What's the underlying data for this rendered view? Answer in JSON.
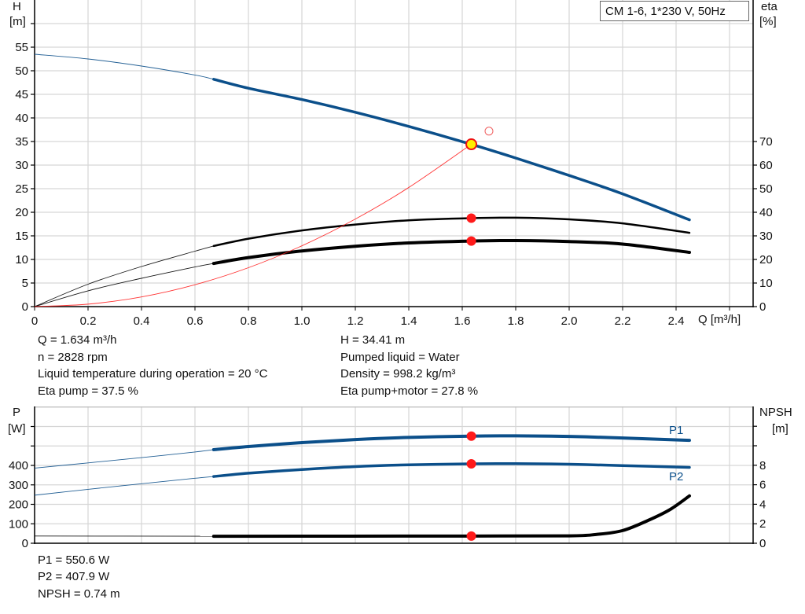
{
  "chart_data": [
    {
      "type": "line",
      "title": "CM 1-6, 1*230 V, 50Hz",
      "xlabel": "Q [m³/h]",
      "ylabel_left": {
        "name": "H",
        "unit": "[m]"
      },
      "ylabel_right": {
        "name": "eta",
        "unit": "[%]"
      },
      "xlim": [
        0,
        2.69
      ],
      "ylim_left": [
        0,
        65
      ],
      "ylim_right": [
        0,
        130
      ],
      "x_ticks": [
        "0",
        "0.2",
        "0.4",
        "0.6",
        "0.8",
        "1.0",
        "1.2",
        "1.4",
        "1.6",
        "1.8",
        "2.0",
        "2.2",
        "2.4"
      ],
      "y_left_ticks": [
        "0",
        "5",
        "10",
        "15",
        "20",
        "25",
        "30",
        "35",
        "40",
        "45",
        "50",
        "55"
      ],
      "y_right_ticks": [
        "0",
        "10",
        "20",
        "30",
        "40",
        "50",
        "60",
        "70"
      ],
      "grid": true,
      "series": [
        {
          "axis": "left",
          "color": "#0b4f8a",
          "thick_from_q": 0.67,
          "x": [
            0,
            0.2,
            0.4,
            0.6,
            0.67,
            0.8,
            1.0,
            1.2,
            1.4,
            1.634,
            1.8,
            2.0,
            2.2,
            2.45
          ],
          "y": [
            53.5,
            52.5,
            51.0,
            49.1,
            48.2,
            46.3,
            43.9,
            41.2,
            38.2,
            34.41,
            31.5,
            27.8,
            23.9,
            18.4
          ]
        },
        {
          "axis": "right",
          "color": "#000000",
          "thick_from_q": 0.67,
          "x": [
            0,
            0.2,
            0.4,
            0.6,
            0.67,
            0.8,
            1.0,
            1.2,
            1.4,
            1.634,
            1.8,
            2.0,
            2.2,
            2.45
          ],
          "y": [
            0,
            9.5,
            17.0,
            23.5,
            25.7,
            28.8,
            32.3,
            34.8,
            36.6,
            37.5,
            37.7,
            37.0,
            35.3,
            31.3
          ]
        },
        {
          "axis": "right",
          "color": "#000000",
          "thick_from_q": 0.67,
          "heavy": true,
          "x": [
            0,
            0.2,
            0.4,
            0.6,
            0.67,
            0.8,
            1.0,
            1.2,
            1.4,
            1.634,
            1.8,
            2.0,
            2.2,
            2.45
          ],
          "y": [
            0,
            6.7,
            12.0,
            16.8,
            18.3,
            20.8,
            23.6,
            25.6,
            27.0,
            27.8,
            28.0,
            27.6,
            26.5,
            23.0
          ]
        },
        {
          "axis": "left",
          "color": "#ff2020",
          "thick_from_q": null,
          "x": [
            0,
            0.2,
            0.4,
            0.6,
            0.8,
            1.0,
            1.2,
            1.4,
            1.634
          ],
          "y": [
            0,
            0.52,
            2.06,
            4.64,
            8.25,
            12.89,
            18.56,
            25.26,
            34.41
          ]
        }
      ],
      "duty_point": {
        "q": 1.634,
        "h": 34.41,
        "eta_pump": 37.5,
        "eta_total": 27.8
      },
      "requested_point": {
        "q": 1.7,
        "h": 37.2
      }
    },
    {
      "type": "line",
      "ylabel_left": {
        "name": "P",
        "unit": "[W]"
      },
      "ylabel_right": {
        "name": "NPSH",
        "unit": "[m]"
      },
      "xlim": [
        0,
        2.69
      ],
      "ylim_left": [
        0,
        700
      ],
      "ylim_right": [
        0,
        14
      ],
      "y_left_ticks": [
        "0",
        "100",
        "200",
        "300",
        "400"
      ],
      "y_right_ticks": [
        "0",
        "2",
        "4",
        "6",
        "8"
      ],
      "grid": true,
      "series": [
        {
          "name": "P1",
          "axis": "left",
          "color": "#0b4f8a",
          "thick_from_q": 0.67,
          "heavy": true,
          "x": [
            0,
            0.2,
            0.4,
            0.6,
            0.67,
            0.8,
            1.0,
            1.2,
            1.4,
            1.634,
            1.8,
            2.0,
            2.2,
            2.45
          ],
          "y": [
            386,
            413,
            440,
            469,
            481,
            497,
            517,
            533,
            544,
            550.6,
            552,
            549,
            541,
            529
          ]
        },
        {
          "name": "P2",
          "axis": "left",
          "color": "#0b4f8a",
          "thick_from_q": 0.67,
          "x": [
            0,
            0.2,
            0.4,
            0.6,
            0.67,
            0.8,
            1.0,
            1.2,
            1.4,
            1.634,
            1.8,
            2.0,
            2.2,
            2.45
          ],
          "y": [
            247,
            277,
            306,
            334,
            343,
            360,
            379,
            394,
            403,
            407.9,
            409,
            406,
            399,
            390
          ]
        },
        {
          "axis": "right",
          "color": "#000000",
          "thick_from_q": 0.67,
          "heavy": true,
          "x": [
            0,
            0.67,
            1.634,
            2.0,
            2.1,
            2.2,
            2.3,
            2.38,
            2.45
          ],
          "y": [
            0.74,
            0.72,
            0.74,
            0.76,
            0.9,
            1.3,
            2.4,
            3.5,
            4.86
          ]
        }
      ],
      "duty_point": {
        "q": 1.634,
        "p1": 550.6,
        "p2": 407.9,
        "npsh": 0.74
      }
    }
  ],
  "results": {
    "left": [
      "Q = 1.634 m³/h",
      "n = 2828 rpm",
      "Liquid temperature during operation = 20 °C",
      "Eta pump = 37.5 %"
    ],
    "right": [
      "H = 34.41 m",
      "Pumped liquid = Water",
      "Density = 998.2 kg/m³",
      "Eta pump+motor = 27.8 %"
    ],
    "power": [
      "P1 = 550.6 W",
      "P2 = 407.9 W",
      "NPSH = 0.74 m"
    ]
  }
}
